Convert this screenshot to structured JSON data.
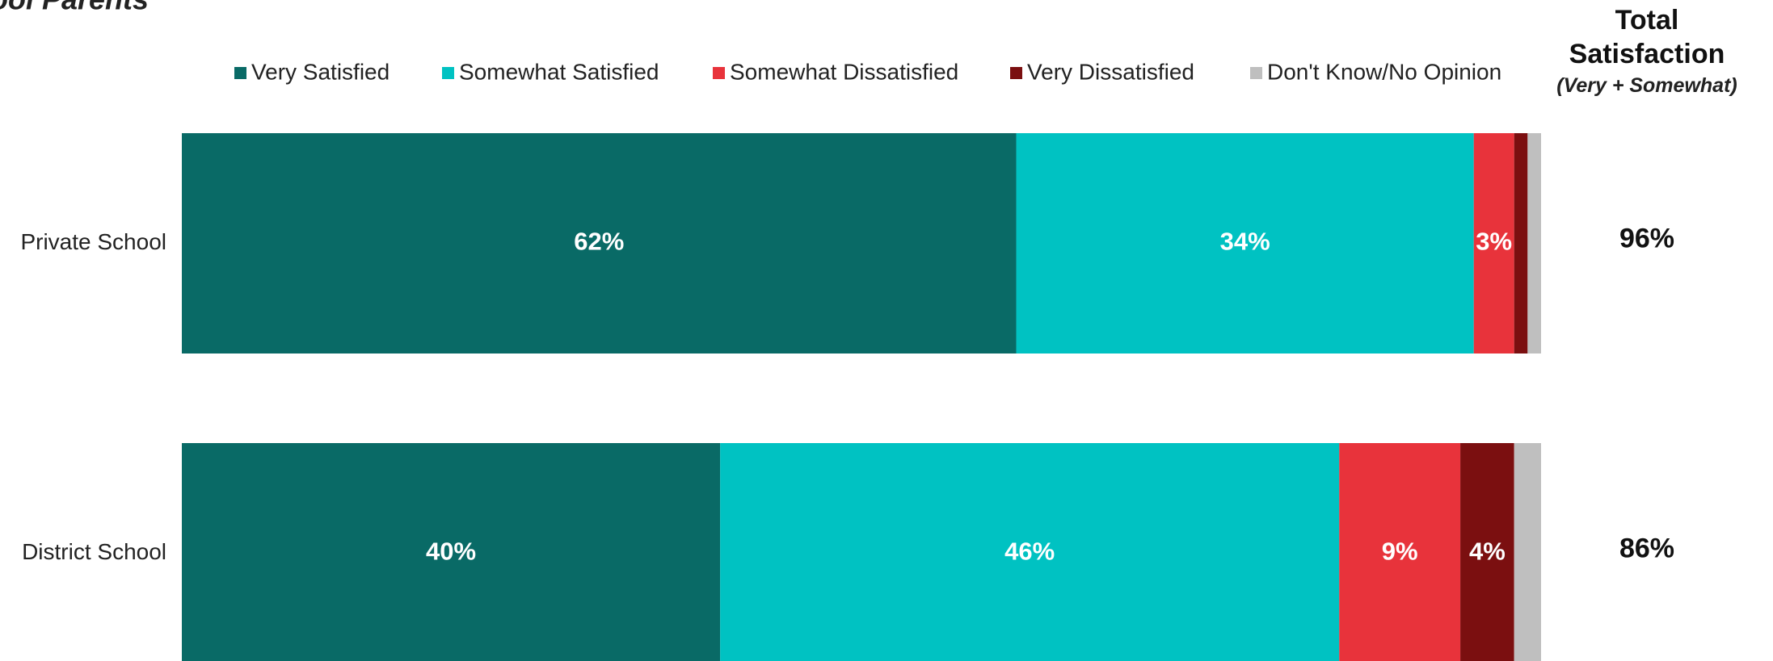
{
  "chart_data": {
    "type": "stacked-barh",
    "title": "ool Parents",
    "categories": [
      "Private School",
      "District School"
    ],
    "xlim": [
      0,
      101
    ],
    "series": [
      {
        "name": "Very Satisfied",
        "color": "#096a66",
        "values": [
          62,
          40
        ],
        "value_labels": [
          "62%",
          "40%"
        ]
      },
      {
        "name": "Somewhat Satisfied",
        "color": "#00c2c2",
        "values": [
          34,
          46
        ],
        "value_labels": [
          "34%",
          "46%"
        ]
      },
      {
        "name": "Somewhat Dissatisfied",
        "color": "#e8333b",
        "values": [
          3,
          9
        ],
        "value_labels": [
          "3%",
          "9%"
        ]
      },
      {
        "name": "Very Dissatisfied",
        "color": "#7b0f10",
        "values": [
          1,
          4
        ],
        "value_labels": [
          null,
          "4%"
        ]
      },
      {
        "name": "Don't Know/No Opinion",
        "color": "#bfbfbf",
        "values": [
          1,
          2
        ],
        "value_labels": [
          null,
          null
        ]
      }
    ],
    "totals": {
      "title": "Total Satisfaction",
      "subtitle": "(Very + Somewhat)",
      "values": [
        96,
        86
      ],
      "value_labels": [
        "96%",
        "86%"
      ]
    }
  }
}
